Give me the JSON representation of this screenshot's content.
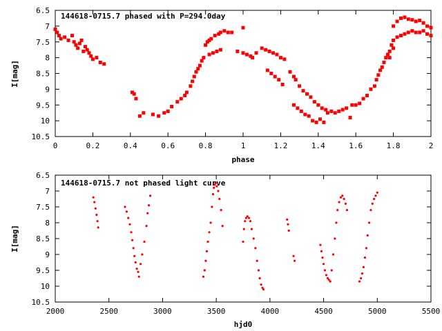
{
  "chart_data": [
    {
      "type": "scatter",
      "title": "144618-0715.7 phased with P=294.0day",
      "xlabel": "phase",
      "ylabel": "I[mag]",
      "xlim": [
        0,
        2
      ],
      "ylim": [
        6.5,
        10.5
      ],
      "y_inverted": true,
      "x_ticks": [
        "0",
        "0.2",
        "0.4",
        "0.6",
        "0.8",
        "1",
        "1.2",
        "1.4",
        "1.6",
        "1.8",
        "2"
      ],
      "y_ticks": [
        "6.5",
        "7",
        "7.5",
        "8",
        "8.5",
        "9",
        "9.5",
        "10",
        "10.5"
      ],
      "marker": "filled-square",
      "color": "#ff0000",
      "points": [
        [
          0.0,
          7.1
        ],
        [
          0.01,
          7.2
        ],
        [
          0.02,
          7.3
        ],
        [
          0.03,
          7.4
        ],
        [
          0.05,
          7.35
        ],
        [
          0.07,
          7.45
        ],
        [
          0.09,
          7.3
        ],
        [
          0.1,
          7.5
        ],
        [
          0.11,
          7.6
        ],
        [
          0.12,
          7.7
        ],
        [
          0.13,
          7.55
        ],
        [
          0.14,
          7.45
        ],
        [
          0.15,
          7.8
        ],
        [
          0.16,
          7.65
        ],
        [
          0.17,
          7.75
        ],
        [
          0.18,
          7.85
        ],
        [
          0.19,
          7.95
        ],
        [
          0.2,
          8.05
        ],
        [
          0.22,
          8.0
        ],
        [
          0.24,
          8.15
        ],
        [
          0.26,
          8.2
        ],
        [
          0.41,
          9.1
        ],
        [
          0.42,
          9.15
        ],
        [
          0.43,
          9.3
        ],
        [
          0.45,
          9.85
        ],
        [
          0.47,
          9.75
        ],
        [
          0.52,
          9.8
        ],
        [
          0.55,
          9.85
        ],
        [
          0.58,
          9.75
        ],
        [
          0.6,
          9.7
        ],
        [
          0.62,
          9.55
        ],
        [
          0.65,
          9.4
        ],
        [
          0.67,
          9.3
        ],
        [
          0.69,
          9.2
        ],
        [
          0.7,
          9.1
        ],
        [
          0.72,
          8.9
        ],
        [
          0.73,
          8.75
        ],
        [
          0.74,
          8.6
        ],
        [
          0.75,
          8.45
        ],
        [
          0.76,
          8.35
        ],
        [
          0.77,
          8.25
        ],
        [
          0.78,
          8.1
        ],
        [
          0.79,
          8.0
        ],
        [
          0.8,
          7.6
        ],
        [
          0.81,
          7.5
        ],
        [
          0.82,
          7.45
        ],
        [
          0.83,
          7.4
        ],
        [
          0.85,
          7.3
        ],
        [
          0.87,
          7.25
        ],
        [
          0.88,
          7.2
        ],
        [
          0.9,
          7.15
        ],
        [
          0.92,
          7.2
        ],
        [
          0.94,
          7.2
        ],
        [
          0.82,
          7.9
        ],
        [
          0.84,
          7.85
        ],
        [
          0.86,
          7.8
        ],
        [
          0.88,
          7.75
        ],
        [
          0.97,
          7.8
        ],
        [
          1.0,
          7.85
        ],
        [
          1.02,
          7.9
        ],
        [
          1.04,
          7.95
        ],
        [
          1.05,
          8.0
        ],
        [
          1.07,
          7.85
        ],
        [
          1.0,
          7.05
        ],
        [
          1.1,
          7.7
        ],
        [
          1.12,
          7.75
        ],
        [
          1.14,
          7.8
        ],
        [
          1.16,
          7.85
        ],
        [
          1.18,
          7.9
        ],
        [
          1.2,
          8.0
        ],
        [
          1.22,
          8.05
        ],
        [
          1.13,
          8.4
        ],
        [
          1.15,
          8.5
        ],
        [
          1.17,
          8.6
        ],
        [
          1.19,
          8.7
        ],
        [
          1.21,
          8.85
        ],
        [
          1.25,
          8.45
        ],
        [
          1.27,
          8.6
        ],
        [
          1.28,
          8.7
        ],
        [
          1.3,
          8.9
        ],
        [
          1.32,
          9.05
        ],
        [
          1.34,
          9.15
        ],
        [
          1.36,
          9.25
        ],
        [
          1.38,
          9.4
        ],
        [
          1.4,
          9.5
        ],
        [
          1.42,
          9.6
        ],
        [
          1.44,
          9.65
        ],
        [
          1.27,
          9.5
        ],
        [
          1.29,
          9.6
        ],
        [
          1.31,
          9.7
        ],
        [
          1.33,
          9.8
        ],
        [
          1.35,
          9.85
        ],
        [
          1.37,
          10.0
        ],
        [
          1.39,
          10.05
        ],
        [
          1.41,
          9.95
        ],
        [
          1.43,
          10.05
        ],
        [
          1.45,
          9.75
        ],
        [
          1.47,
          9.7
        ],
        [
          1.49,
          9.75
        ],
        [
          1.51,
          9.7
        ],
        [
          1.53,
          9.65
        ],
        [
          1.55,
          9.6
        ],
        [
          1.57,
          9.9
        ],
        [
          1.58,
          9.5
        ],
        [
          1.6,
          9.5
        ],
        [
          1.62,
          9.45
        ],
        [
          1.64,
          9.3
        ],
        [
          1.66,
          9.2
        ],
        [
          1.68,
          9.0
        ],
        [
          1.7,
          8.9
        ],
        [
          1.71,
          8.7
        ],
        [
          1.72,
          8.55
        ],
        [
          1.73,
          8.4
        ],
        [
          1.74,
          8.3
        ],
        [
          1.75,
          8.15
        ],
        [
          1.76,
          8.0
        ],
        [
          1.77,
          7.9
        ],
        [
          1.78,
          7.8
        ],
        [
          1.79,
          7.6
        ],
        [
          1.8,
          7.45
        ],
        [
          1.82,
          7.35
        ],
        [
          1.84,
          7.3
        ],
        [
          1.86,
          7.25
        ],
        [
          1.88,
          7.2
        ],
        [
          1.9,
          7.15
        ],
        [
          1.92,
          7.2
        ],
        [
          1.94,
          7.2
        ],
        [
          1.96,
          7.15
        ],
        [
          1.98,
          7.25
        ],
        [
          2.0,
          7.3
        ],
        [
          1.8,
          7.0
        ],
        [
          1.82,
          6.85
        ],
        [
          1.84,
          6.75
        ],
        [
          1.86,
          6.72
        ],
        [
          1.88,
          6.78
        ],
        [
          1.9,
          6.8
        ],
        [
          1.92,
          6.85
        ],
        [
          1.94,
          6.82
        ],
        [
          1.96,
          6.9
        ],
        [
          1.98,
          7.0
        ],
        [
          2.0,
          7.05
        ],
        [
          1.8,
          7.7
        ],
        [
          1.78,
          8.0
        ]
      ]
    },
    {
      "type": "scatter",
      "title": "144618-0715.7 not phased light curve",
      "xlabel": "hjd0",
      "ylabel": "I[mag]",
      "xlim": [
        2000,
        5500
      ],
      "ylim": [
        6.5,
        10.5
      ],
      "y_inverted": true,
      "x_ticks": [
        "2000",
        "2500",
        "3000",
        "3500",
        "4000",
        "4500",
        "5000",
        "5500"
      ],
      "y_ticks": [
        "6.5",
        "7",
        "7.5",
        "8",
        "8.5",
        "9",
        "9.5",
        "10",
        "10.5"
      ],
      "marker": "small-dot",
      "color": "#ff0000",
      "points": [
        [
          2355,
          7.2
        ],
        [
          2365,
          7.35
        ],
        [
          2375,
          7.55
        ],
        [
          2385,
          7.75
        ],
        [
          2393,
          7.95
        ],
        [
          2400,
          8.15
        ],
        [
          2650,
          7.5
        ],
        [
          2665,
          7.65
        ],
        [
          2680,
          7.85
        ],
        [
          2695,
          8.05
        ],
        [
          2708,
          8.3
        ],
        [
          2718,
          8.55
        ],
        [
          2728,
          8.8
        ],
        [
          2738,
          9.05
        ],
        [
          2748,
          9.25
        ],
        [
          2760,
          9.45
        ],
        [
          2772,
          9.55
        ],
        [
          2780,
          9.7
        ],
        [
          2795,
          9.3
        ],
        [
          2810,
          9.0
        ],
        [
          2830,
          8.6
        ],
        [
          2850,
          8.1
        ],
        [
          2860,
          7.7
        ],
        [
          2872,
          7.45
        ],
        [
          2885,
          7.15
        ],
        [
          3380,
          9.7
        ],
        [
          3392,
          9.5
        ],
        [
          3402,
          9.2
        ],
        [
          3412,
          8.9
        ],
        [
          3422,
          8.6
        ],
        [
          3435,
          8.3
        ],
        [
          3448,
          8.0
        ],
        [
          3460,
          7.5
        ],
        [
          3470,
          7.1
        ],
        [
          3478,
          6.9
        ],
        [
          3485,
          6.8
        ],
        [
          3495,
          6.75
        ],
        [
          3505,
          6.85
        ],
        [
          3518,
          7.0
        ],
        [
          3530,
          7.25
        ],
        [
          3545,
          7.6
        ],
        [
          3558,
          8.1
        ],
        [
          3750,
          8.6
        ],
        [
          3758,
          8.2
        ],
        [
          3768,
          7.95
        ],
        [
          3778,
          7.85
        ],
        [
          3790,
          7.8
        ],
        [
          3805,
          7.85
        ],
        [
          3818,
          7.95
        ],
        [
          3830,
          8.2
        ],
        [
          3848,
          8.5
        ],
        [
          3865,
          8.8
        ],
        [
          3880,
          9.2
        ],
        [
          3895,
          9.5
        ],
        [
          3905,
          9.75
        ],
        [
          3918,
          9.95
        ],
        [
          3930,
          10.05
        ],
        [
          3940,
          10.1
        ],
        [
          4160,
          7.9
        ],
        [
          4168,
          8.05
        ],
        [
          4176,
          8.25
        ],
        [
          4220,
          9.05
        ],
        [
          4230,
          9.2
        ],
        [
          4470,
          8.7
        ],
        [
          4480,
          8.9
        ],
        [
          4490,
          9.1
        ],
        [
          4500,
          9.3
        ],
        [
          4512,
          9.5
        ],
        [
          4525,
          9.65
        ],
        [
          4538,
          9.75
        ],
        [
          4550,
          9.8
        ],
        [
          4562,
          9.85
        ],
        [
          4575,
          9.5
        ],
        [
          4590,
          9.0
        ],
        [
          4605,
          8.5
        ],
        [
          4618,
          8.0
        ],
        [
          4630,
          7.6
        ],
        [
          4645,
          7.35
        ],
        [
          4660,
          7.2
        ],
        [
          4675,
          7.15
        ],
        [
          4690,
          7.25
        ],
        [
          4705,
          7.4
        ],
        [
          4718,
          7.6
        ],
        [
          4835,
          9.85
        ],
        [
          4848,
          9.75
        ],
        [
          4860,
          9.6
        ],
        [
          4872,
          9.4
        ],
        [
          4885,
          9.1
        ],
        [
          4898,
          8.8
        ],
        [
          4910,
          8.4
        ],
        [
          4925,
          8.0
        ],
        [
          4940,
          7.6
        ],
        [
          4955,
          7.4
        ],
        [
          4970,
          7.25
        ],
        [
          4985,
          7.15
        ],
        [
          5000,
          7.05
        ]
      ]
    }
  ]
}
